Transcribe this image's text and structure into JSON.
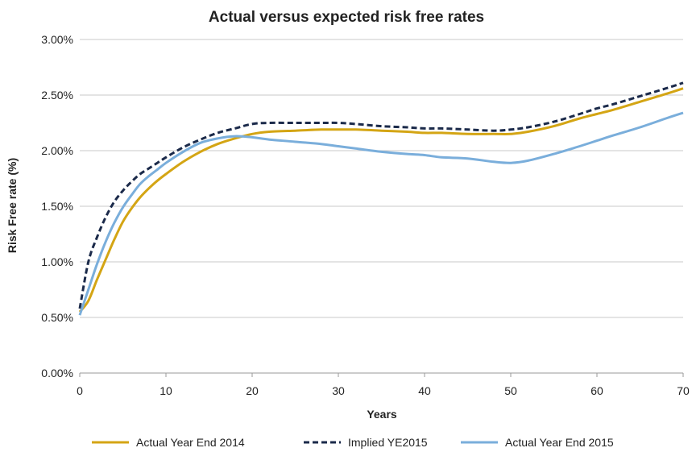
{
  "chart_data": {
    "type": "line",
    "title": "Actual versus expected risk free rates",
    "xlabel": "Years",
    "ylabel": "Risk Free rate (%)",
    "xlim": [
      0,
      70
    ],
    "ylim": [
      0.0,
      3.0
    ],
    "x_ticks": [
      "0",
      "10",
      "20",
      "30",
      "40",
      "50",
      "60",
      "70"
    ],
    "y_ticks": [
      "0.00%",
      "0.50%",
      "1.00%",
      "1.50%",
      "2.00%",
      "2.50%",
      "3.00%"
    ],
    "grid": "horizontal",
    "legend_position": "bottom",
    "x": [
      0,
      1,
      2,
      3,
      4,
      5,
      6,
      7,
      8,
      9,
      10,
      12,
      14,
      16,
      18,
      20,
      22,
      25,
      28,
      30,
      32,
      35,
      38,
      40,
      42,
      45,
      48,
      50,
      52,
      55,
      58,
      60,
      62,
      65,
      68,
      70
    ],
    "series": [
      {
        "name": "Actual Year End 2014",
        "color": "#D4A514",
        "style": "solid",
        "values": [
          0.55,
          0.65,
          0.84,
          1.02,
          1.2,
          1.36,
          1.48,
          1.58,
          1.66,
          1.73,
          1.79,
          1.9,
          1.99,
          2.06,
          2.11,
          2.15,
          2.17,
          2.18,
          2.19,
          2.19,
          2.19,
          2.18,
          2.17,
          2.16,
          2.16,
          2.15,
          2.15,
          2.15,
          2.17,
          2.22,
          2.29,
          2.33,
          2.37,
          2.44,
          2.51,
          2.56
        ]
      },
      {
        "name": "Implied YE2015",
        "color": "#1B2A4A",
        "style": "dashed",
        "values": [
          0.58,
          1.0,
          1.22,
          1.4,
          1.54,
          1.64,
          1.72,
          1.79,
          1.84,
          1.89,
          1.94,
          2.03,
          2.1,
          2.16,
          2.2,
          2.24,
          2.25,
          2.25,
          2.25,
          2.25,
          2.24,
          2.22,
          2.21,
          2.2,
          2.2,
          2.19,
          2.18,
          2.19,
          2.21,
          2.26,
          2.33,
          2.38,
          2.42,
          2.49,
          2.56,
          2.61
        ]
      },
      {
        "name": "Actual Year End 2015",
        "color": "#7AAEDB",
        "style": "solid",
        "values": [
          0.52,
          0.75,
          0.98,
          1.18,
          1.35,
          1.49,
          1.6,
          1.7,
          1.77,
          1.83,
          1.89,
          1.99,
          2.07,
          2.11,
          2.13,
          2.12,
          2.1,
          2.08,
          2.06,
          2.04,
          2.02,
          1.99,
          1.97,
          1.96,
          1.94,
          1.93,
          1.9,
          1.89,
          1.91,
          1.97,
          2.04,
          2.09,
          2.14,
          2.21,
          2.29,
          2.34
        ]
      }
    ]
  }
}
